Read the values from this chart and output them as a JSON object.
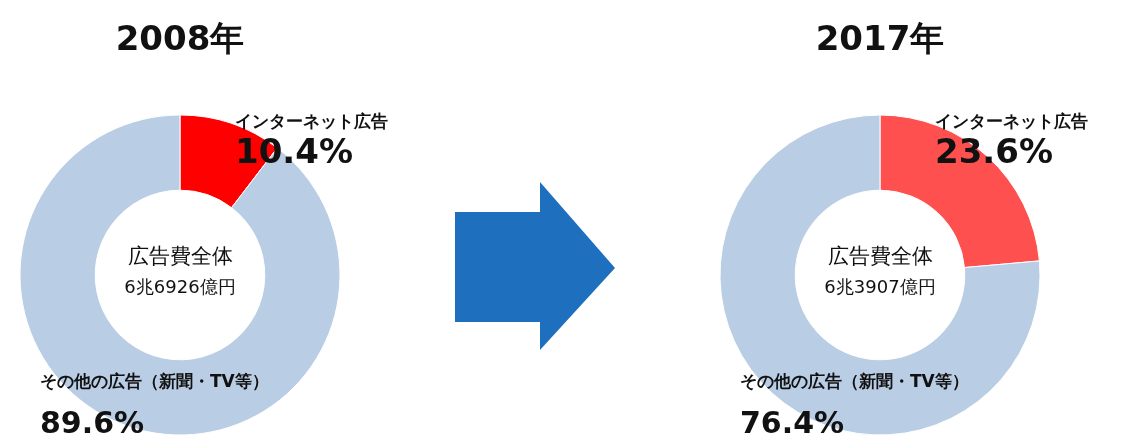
{
  "chart_data": [
    {
      "type": "donut",
      "title": "2008年",
      "categories": [
        "インターネット広告",
        "その他の広告（新聞・TV等）"
      ],
      "values": [
        10.4,
        89.6
      ],
      "value_labels": [
        "10.4%",
        "89.6%"
      ],
      "colors": [
        "#ff0000",
        "#b9cde5"
      ],
      "annotations": [
        "広告費全体",
        "6兆6926億円"
      ]
    },
    {
      "type": "donut",
      "title": "2017年",
      "categories": [
        "インターネット広告",
        "その他の広告（新聞・TV等）"
      ],
      "values": [
        23.6,
        76.4
      ],
      "value_labels": [
        "23.6%",
        "76.4%"
      ],
      "colors": [
        "#ff5050",
        "#b9cde5"
      ],
      "annotations": [
        "広告費全体",
        "6兆3907億円"
      ]
    }
  ]
}
